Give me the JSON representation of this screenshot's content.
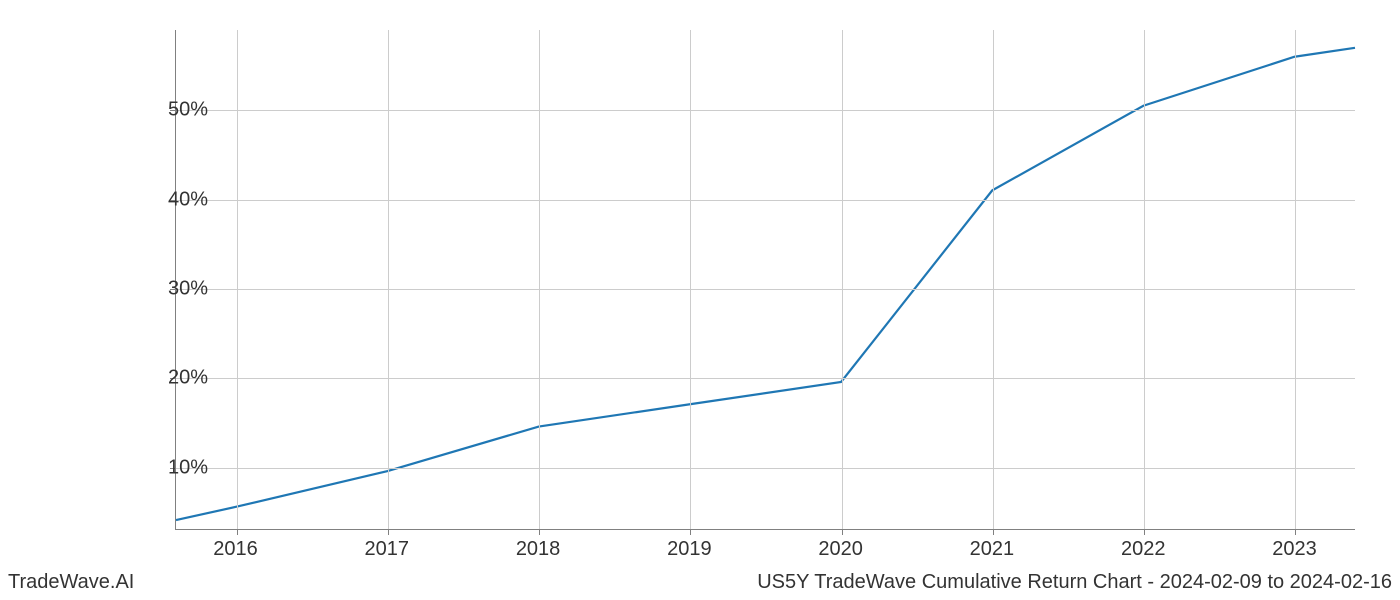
{
  "chart": {
    "type": "line",
    "line_color": "#1f77b4",
    "line_width": 2.2,
    "background_color": "#ffffff",
    "grid_color": "#cccccc",
    "axis_color": "#808080",
    "tick_font_size": 20,
    "tick_color": "#333333",
    "x_ticks": [
      2016,
      2017,
      2018,
      2019,
      2020,
      2021,
      2022,
      2023
    ],
    "x_tick_labels": [
      "2016",
      "2017",
      "2018",
      "2019",
      "2020",
      "2021",
      "2022",
      "2023"
    ],
    "y_ticks": [
      10,
      20,
      30,
      40,
      50
    ],
    "y_tick_labels": [
      "10%",
      "20%",
      "30%",
      "40%",
      "50%"
    ],
    "x_range": [
      2015.6,
      2023.4
    ],
    "y_range": [
      3,
      59
    ],
    "data_x": [
      2015.6,
      2016,
      2017,
      2018,
      2019,
      2020,
      2021,
      2022,
      2023,
      2023.4
    ],
    "data_y": [
      4.0,
      5.5,
      9.5,
      14.5,
      17.0,
      19.5,
      41.0,
      50.5,
      56.0,
      57.0
    ]
  },
  "footer": {
    "left": "TradeWave.AI",
    "right": "US5Y TradeWave Cumulative Return Chart - 2024-02-09 to 2024-02-16"
  }
}
